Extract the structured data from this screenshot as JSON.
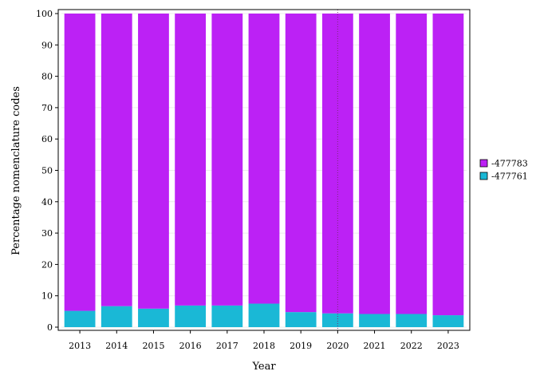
{
  "chart_data": {
    "type": "bar",
    "stacked": true,
    "title": "",
    "xlabel": "Year",
    "ylabel": "Percentage nomenclature codes",
    "categories": [
      "2013",
      "2014",
      "2015",
      "2016",
      "2017",
      "2018",
      "2019",
      "2020",
      "2021",
      "2022",
      "2023"
    ],
    "series": [
      {
        "name": "-477761",
        "color": "#1ab8d6",
        "values": [
          5.2,
          6.7,
          5.9,
          6.9,
          6.9,
          7.5,
          4.8,
          4.4,
          4.2,
          4.2,
          3.8
        ]
      },
      {
        "name": "-477783",
        "color": "#bc21f5",
        "values": [
          94.8,
          93.3,
          94.1,
          93.1,
          93.1,
          92.5,
          95.2,
          95.6,
          95.8,
          95.8,
          96.2
        ]
      }
    ],
    "yticks": [
      0,
      10,
      20,
      30,
      40,
      50,
      60,
      70,
      80,
      90,
      100
    ],
    "ylim": [
      0,
      100
    ],
    "grid": true,
    "legend_position": "right",
    "legend_order": [
      "-477783",
      "-477761"
    ],
    "reference_line_category": "2020"
  }
}
